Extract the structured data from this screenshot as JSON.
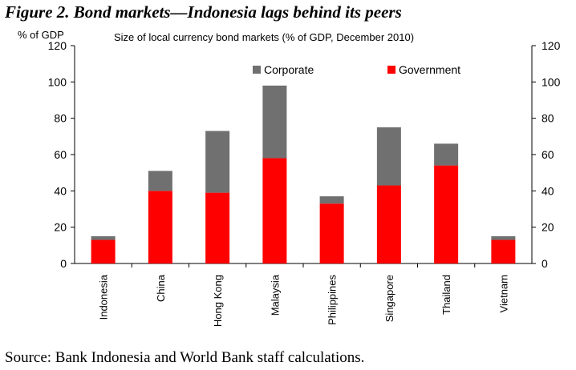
{
  "figure_title": "Figure 2. Bond markets—Indonesia lags behind its peers",
  "source": "Source: Bank Indonesia and World Bank staff calculations.",
  "chart_data": {
    "type": "bar",
    "stacked": true,
    "title": "Size of local currency bond markets (% of GDP, December 2010)",
    "ylabel": "% of GDP",
    "xlabel": "",
    "ylim": [
      0,
      120
    ],
    "yticks": [
      0,
      20,
      40,
      60,
      80,
      100,
      120
    ],
    "grid": false,
    "legend_placement": "top",
    "categories": [
      "Indonesia",
      "China",
      "Hong Kong",
      "Malaysia",
      "Philippines",
      "Singapore",
      "Thailand",
      "Vietnam"
    ],
    "series": [
      {
        "name": "Government",
        "color": "#ff0000",
        "values": [
          13,
          40,
          39,
          58,
          33,
          43,
          54,
          13
        ]
      },
      {
        "name": "Corporate",
        "color": "#707070",
        "values": [
          2,
          11,
          34,
          40,
          4,
          32,
          12,
          2
        ]
      }
    ]
  }
}
